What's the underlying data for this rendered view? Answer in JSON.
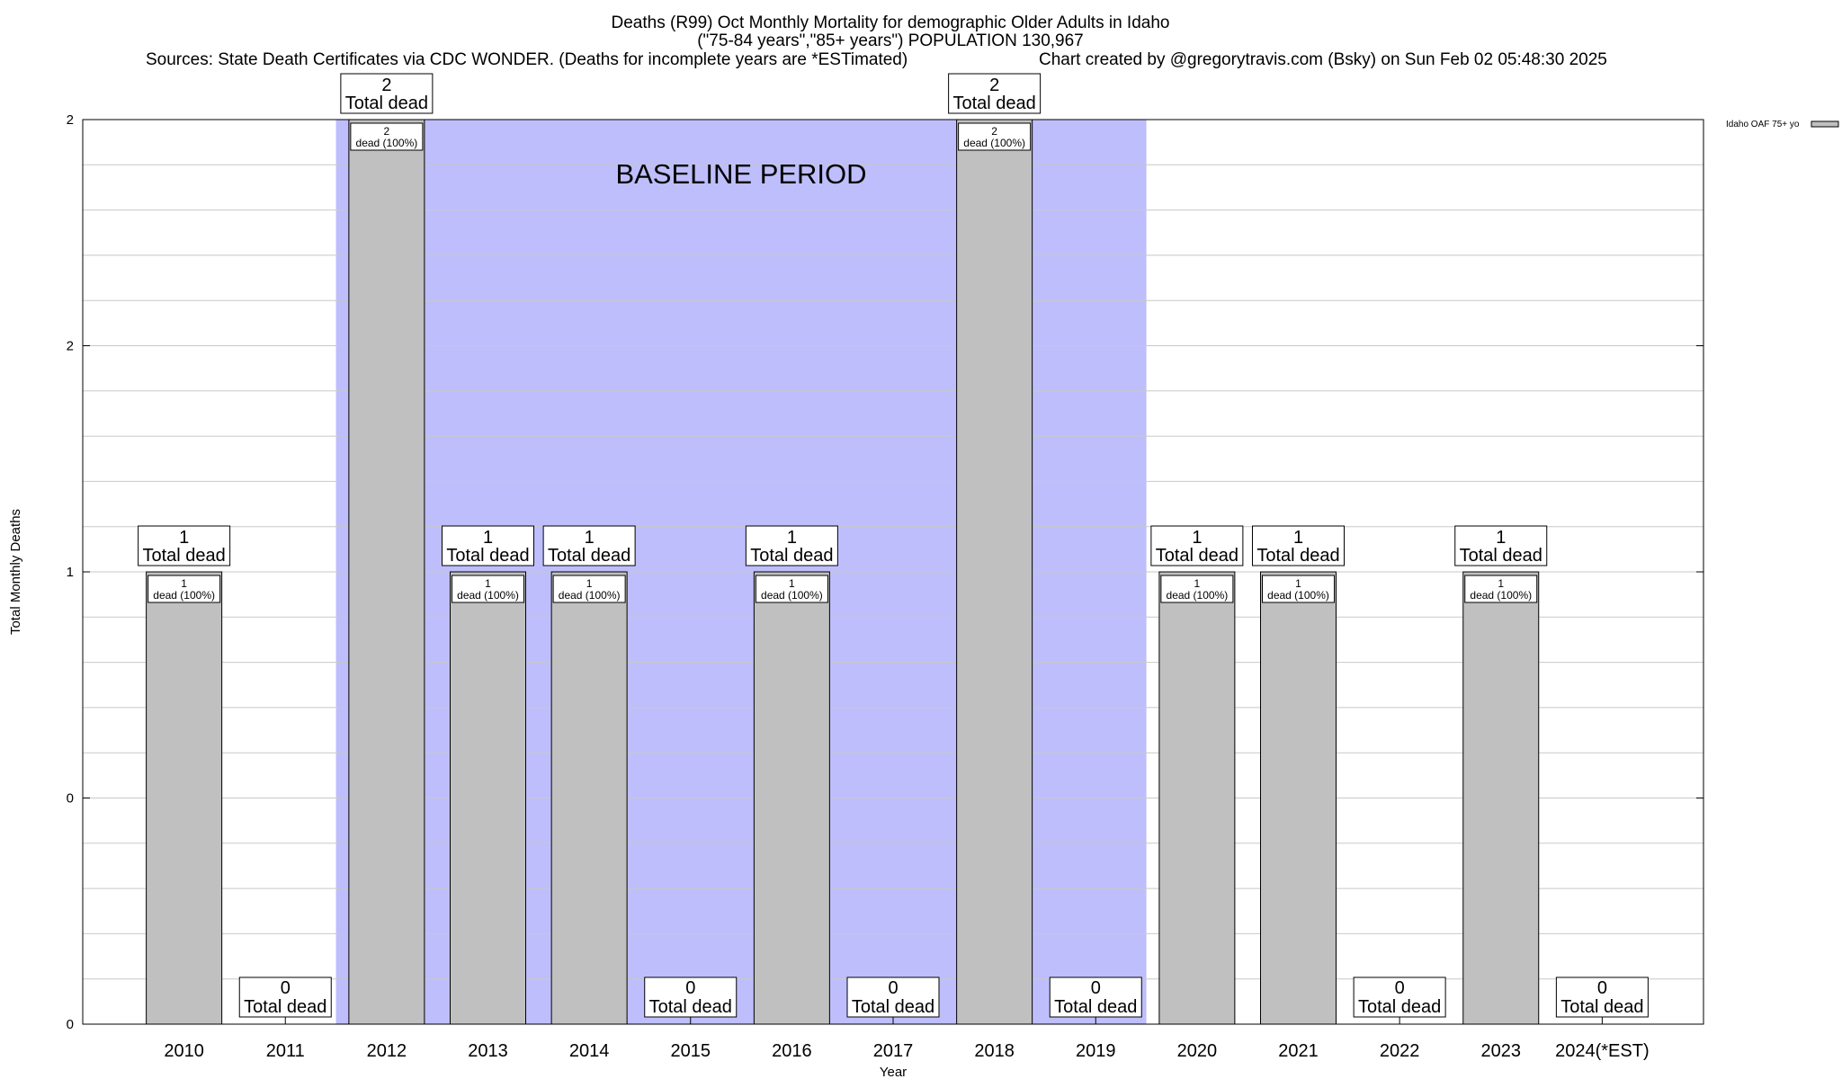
{
  "chart_data": {
    "type": "bar",
    "title": "Deaths (R99) Oct Monthly Mortality for demographic Older Adults in Idaho",
    "subtitle": "(\"75-84 years\",\"85+ years\") POPULATION 130,967",
    "sources": "Sources: State Death Certificates via CDC WONDER. (Deaths for incomplete years are *ESTimated)",
    "credit": "Chart created by @gregorytravis.com (Bsky) on Sun Feb 02 05:48:30 2025",
    "xlabel": "Year",
    "ylabel": "Total Monthly Deaths",
    "baseline_label": "BASELINE PERIOD",
    "baseline_range": [
      "2012",
      "2019"
    ],
    "legend": "Idaho OAF 75+ yo",
    "legend_position": "top-right",
    "grid": true,
    "ylim": [
      0,
      2
    ],
    "yticks": [
      {
        "value": 0,
        "label": "0"
      },
      {
        "value": 0.5,
        "label": "0"
      },
      {
        "value": 1,
        "label": "1"
      },
      {
        "value": 1.5,
        "label": "2"
      },
      {
        "value": 2,
        "label": "2"
      }
    ],
    "categories": [
      "2010",
      "2011",
      "2012",
      "2013",
      "2014",
      "2015",
      "2016",
      "2017",
      "2018",
      "2019",
      "2020",
      "2021",
      "2022",
      "2023",
      "2024(*EST)"
    ],
    "values": [
      1,
      0,
      2,
      1,
      1,
      0,
      1,
      0,
      2,
      0,
      1,
      1,
      0,
      1,
      0
    ],
    "total_label": "Total dead",
    "inner_labels": [
      "1\ndead (100%)",
      "",
      "2\ndead (100%)",
      "1\ndead (100%)",
      "1\ndead (100%)",
      "",
      "1\ndead (100%)",
      "",
      "2\ndead (100%)",
      "",
      "1\ndead (100%)",
      "1\ndead (100%)",
      "",
      "1\ndead (100%)",
      ""
    ],
    "colors": {
      "bar": "#c0c0c0",
      "baseline": "#bebefc",
      "grid": "#c8c8c8"
    }
  }
}
